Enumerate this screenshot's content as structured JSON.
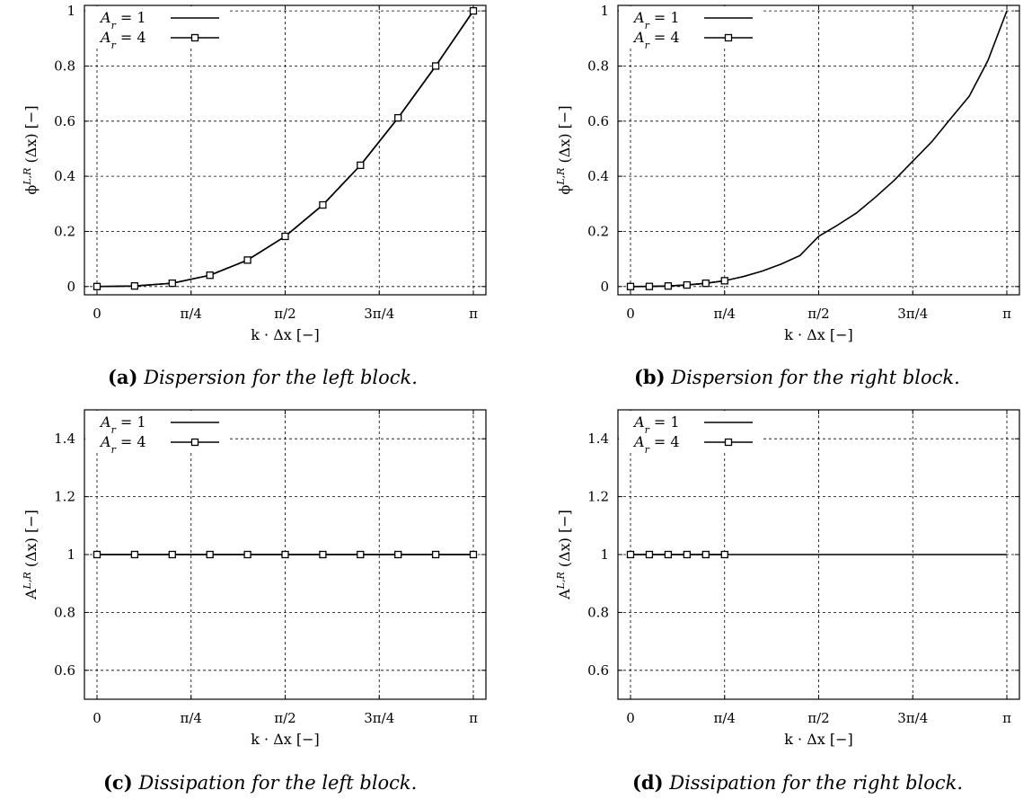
{
  "chart_data": [
    {
      "type": "line",
      "caption_label": "(a)",
      "caption_text": "Dispersion for the left block.",
      "xlabel": "k · Δx [−]",
      "ylabel": "ϕ^{L,R} (Δx) [−]",
      "xlim": [
        0,
        3.1416
      ],
      "ylim": [
        -0.03,
        1.02
      ],
      "x_ticks": [
        0,
        0.7854,
        1.5708,
        2.3562,
        3.1416
      ],
      "x_tick_labels": [
        "0",
        "π/4",
        "π/2",
        "3π/4",
        "π"
      ],
      "y_ticks": [
        0,
        0.2,
        0.4,
        0.6,
        0.8,
        1
      ],
      "y_tick_labels": [
        "0",
        "0.2",
        "0.4",
        "0.6",
        "0.8",
        "1"
      ],
      "grid": true,
      "legend_position": "top-left",
      "series": [
        {
          "name": "A_r = 1",
          "marker": "none",
          "x": [
            0,
            0.3142,
            0.6283,
            0.9425,
            1.2566,
            1.5708,
            1.885,
            2.1991,
            2.5133,
            2.8274,
            3.1416
          ],
          "y": [
            0,
            0.002,
            0.012,
            0.041,
            0.096,
            0.182,
            0.296,
            0.44,
            0.612,
            0.8,
            1.0
          ]
        },
        {
          "name": "A_r = 4",
          "marker": "square",
          "x": [
            0,
            0.3142,
            0.6283,
            0.9425,
            1.2566,
            1.5708,
            1.885,
            2.1991,
            2.5133,
            2.8274,
            3.1416
          ],
          "y": [
            0,
            0.002,
            0.012,
            0.041,
            0.096,
            0.182,
            0.296,
            0.44,
            0.612,
            0.8,
            1.0
          ]
        }
      ]
    },
    {
      "type": "line",
      "caption_label": "(b)",
      "caption_text": "Dispersion for the right block.",
      "xlabel": "k · Δx [−]",
      "ylabel": "ϕ^{L,R} (Δx) [−]",
      "xlim": [
        0,
        3.1416
      ],
      "ylim": [
        -0.03,
        1.02
      ],
      "x_ticks": [
        0,
        0.7854,
        1.5708,
        2.3562,
        3.1416
      ],
      "x_tick_labels": [
        "0",
        "π/4",
        "π/2",
        "3π/4",
        "π"
      ],
      "y_ticks": [
        0,
        0.2,
        0.4,
        0.6,
        0.8,
        1
      ],
      "y_tick_labels": [
        "0",
        "0.2",
        "0.4",
        "0.6",
        "0.8",
        "1"
      ],
      "grid": true,
      "legend_position": "top-left",
      "series": [
        {
          "name": "A_r = 1",
          "marker": "none",
          "x": [
            0,
            0.1571,
            0.3142,
            0.4712,
            0.6283,
            0.7854,
            0.9425,
            1.0996,
            1.2566,
            1.4137,
            1.5708,
            1.7279,
            1.885,
            2.042,
            2.1991,
            2.3562,
            2.5133,
            2.6704,
            2.8274,
            2.9845,
            3.1416
          ],
          "y": [
            0,
            0.0003,
            0.0019,
            0.0056,
            0.0118,
            0.021,
            0.0362,
            0.056,
            0.0812,
            0.1122,
            0.182,
            0.2227,
            0.2664,
            0.3232,
            0.3843,
            0.4548,
            0.5244,
            0.6082,
            0.6904,
            0.8208,
            1.0
          ]
        },
        {
          "name": "A_r = 4",
          "marker": "square",
          "x": [
            0,
            0.1571,
            0.3142,
            0.4712,
            0.6283,
            0.7854
          ],
          "y": [
            0,
            0.0003,
            0.0019,
            0.0056,
            0.0118,
            0.021
          ]
        }
      ]
    },
    {
      "type": "line",
      "caption_label": "(c)",
      "caption_text": "Dissipation for the left block.",
      "xlabel": "k · Δx [−]",
      "ylabel": "A^{L,R} (Δx) [−]",
      "xlim": [
        0,
        3.1416
      ],
      "ylim": [
        0.5,
        1.5
      ],
      "x_ticks": [
        0,
        0.7854,
        1.5708,
        2.3562,
        3.1416
      ],
      "x_tick_labels": [
        "0",
        "π/4",
        "π/2",
        "3π/4",
        "π"
      ],
      "y_ticks": [
        0.6,
        0.8,
        1,
        1.2,
        1.4
      ],
      "y_tick_labels": [
        "0.6",
        "0.8",
        "1",
        "1.2",
        "1.4"
      ],
      "grid": true,
      "legend_position": "top-left",
      "series": [
        {
          "name": "A_r = 1",
          "marker": "none",
          "x": [
            0,
            0.3142,
            0.6283,
            0.9425,
            1.2566,
            1.5708,
            1.885,
            2.1991,
            2.5133,
            2.8274,
            3.1416
          ],
          "y": [
            1,
            1,
            1,
            1,
            1,
            1,
            1,
            1,
            1,
            1,
            1
          ]
        },
        {
          "name": "A_r = 4",
          "marker": "square",
          "x": [
            0,
            0.3142,
            0.6283,
            0.9425,
            1.2566,
            1.5708,
            1.885,
            2.1991,
            2.5133,
            2.8274,
            3.1416
          ],
          "y": [
            1,
            1,
            1,
            1,
            1,
            1,
            1,
            1,
            1,
            1,
            1
          ]
        }
      ]
    },
    {
      "type": "line",
      "caption_label": "(d)",
      "caption_text": "Dissipation for the right block.",
      "xlabel": "k · Δx [−]",
      "ylabel": "A^{L,R} (Δx) [−]",
      "xlim": [
        0,
        3.1416
      ],
      "ylim": [
        0.5,
        1.5
      ],
      "x_ticks": [
        0,
        0.7854,
        1.5708,
        2.3562,
        3.1416
      ],
      "x_tick_labels": [
        "0",
        "π/4",
        "π/2",
        "3π/4",
        "π"
      ],
      "y_ticks": [
        0.6,
        0.8,
        1,
        1.2,
        1.4
      ],
      "y_tick_labels": [
        "0.6",
        "0.8",
        "1",
        "1.2",
        "1.4"
      ],
      "grid": true,
      "legend_position": "top-left",
      "series": [
        {
          "name": "A_r = 1",
          "marker": "none",
          "x": [
            0,
            0.7854,
            1.5708,
            2.3562,
            3.1416
          ],
          "y": [
            1,
            1,
            1,
            1,
            1
          ]
        },
        {
          "name": "A_r = 4",
          "marker": "square",
          "x": [
            0,
            0.1571,
            0.3142,
            0.4712,
            0.6283,
            0.7854
          ],
          "y": [
            1,
            1,
            1,
            1,
            1,
            1
          ]
        }
      ]
    }
  ]
}
